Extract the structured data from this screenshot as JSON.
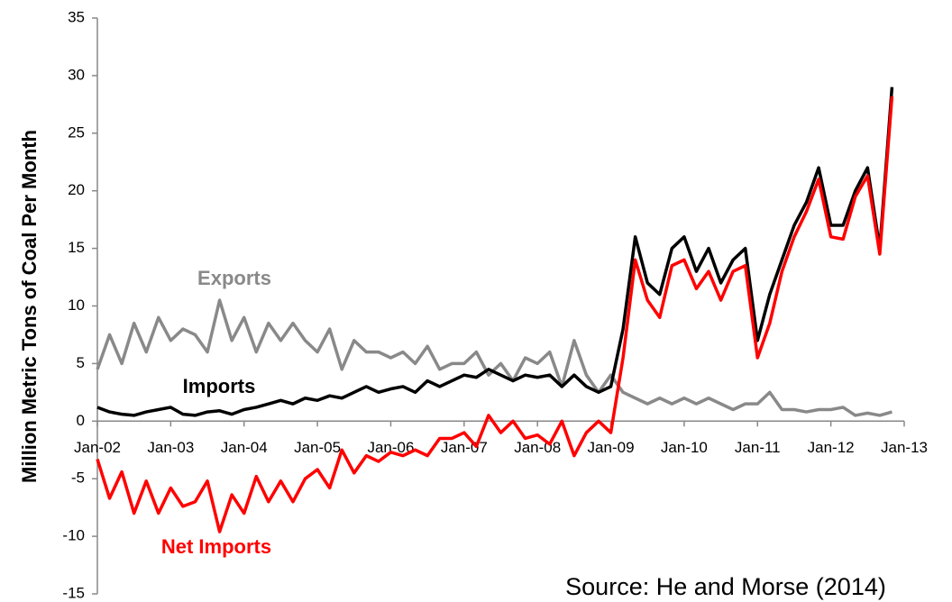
{
  "chart_data": {
    "type": "line",
    "y_label": "Million Metric Tons of Coal Per Month",
    "annotations": [
      "Exports",
      "Imports",
      "Net Imports",
      "Source: He and Morse (2014)"
    ],
    "categories": [
      "Jan-02",
      null,
      null,
      null,
      null,
      null,
      "Jan-03",
      null,
      null,
      null,
      null,
      null,
      "Jan-04",
      null,
      null,
      null,
      null,
      null,
      "Jan-05",
      null,
      null,
      null,
      null,
      null,
      "Jan-06",
      null,
      null,
      null,
      null,
      null,
      "Jan-07",
      null,
      null,
      null,
      null,
      null,
      "Jan-08",
      null,
      null,
      null,
      null,
      null,
      "Jan-09",
      null,
      null,
      null,
      null,
      null,
      "Jan-10",
      null,
      null,
      null,
      null,
      null,
      "Jan-11",
      null,
      null,
      null,
      null,
      null,
      "Jan-12",
      null,
      null,
      null,
      null,
      null,
      "Jan-13"
    ],
    "series": [
      {
        "name": "Exports",
        "color": "#898989",
        "values": [
          4.5,
          7.5,
          5,
          8.5,
          6,
          9,
          7,
          8,
          7.5,
          6,
          10.5,
          7,
          9,
          6,
          8.5,
          7,
          8.5,
          7,
          6,
          8,
          4.5,
          7,
          6,
          6,
          5.5,
          6,
          5,
          6.5,
          4.5,
          5,
          5,
          6,
          4,
          5,
          3.5,
          5.5,
          5,
          6,
          3,
          7,
          4,
          2.5,
          4,
          2.5,
          2,
          1.5,
          2,
          1.5,
          2,
          1.5,
          2,
          1.5,
          1,
          1.5,
          1.5,
          2.5,
          1,
          1,
          0.8,
          1,
          1,
          1.2,
          0.5,
          0.7,
          0.5,
          0.8,
          null
        ]
      },
      {
        "name": "Imports",
        "color": "#000000",
        "values": [
          1.2,
          0.8,
          0.6,
          0.5,
          0.8,
          1,
          1.2,
          0.6,
          0.5,
          0.8,
          0.9,
          0.6,
          1,
          1.2,
          1.5,
          1.8,
          1.5,
          2,
          1.8,
          2.2,
          2,
          2.5,
          3,
          2.5,
          2.8,
          3,
          2.5,
          3.5,
          3,
          3.5,
          4,
          3.8,
          4.5,
          4,
          3.5,
          4,
          3.8,
          4,
          3,
          4,
          3,
          2.5,
          3,
          8,
          16,
          12,
          11,
          15,
          16,
          13,
          15,
          12,
          14,
          15,
          7,
          11,
          14,
          17,
          19,
          22,
          17,
          17,
          20,
          22,
          15,
          29,
          null
        ]
      },
      {
        "name": "Net Imports",
        "color": "#ff0000",
        "values": [
          -3.3,
          -6.7,
          -4.4,
          -8,
          -5.2,
          -8,
          -5.8,
          -7.4,
          -7,
          -5.2,
          -9.6,
          -6.4,
          -8,
          -4.8,
          -7,
          -5.2,
          -7,
          -5,
          -4.2,
          -5.8,
          -2.5,
          -4.5,
          -3,
          -3.5,
          -2.7,
          -3,
          -2.5,
          -3,
          -1.5,
          -1.5,
          -1,
          -2.2,
          0.5,
          -1,
          0,
          -1.5,
          -1.2,
          -2,
          0,
          -3,
          -1,
          0,
          -1,
          5.5,
          14,
          10.5,
          9,
          13.5,
          14,
          11.5,
          13,
          10.5,
          13,
          13.5,
          5.5,
          8.5,
          13,
          16,
          18.2,
          21,
          16,
          15.8,
          19.5,
          21.3,
          14.5,
          28.2,
          null
        ]
      }
    ],
    "ylim": [
      -15,
      35
    ],
    "yticks": [
      -15,
      -10,
      -5,
      0,
      5,
      10,
      15,
      20,
      25,
      30,
      35
    ]
  }
}
